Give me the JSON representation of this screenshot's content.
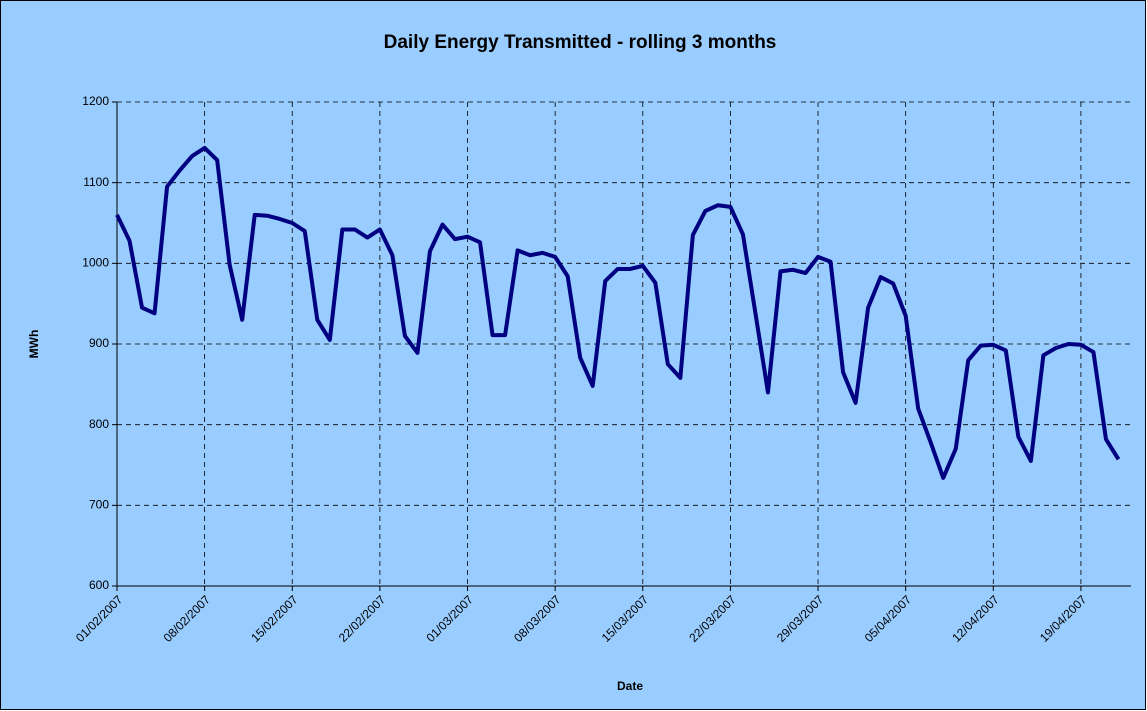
{
  "chart_data": {
    "type": "line",
    "title": "Daily Energy Transmitted - rolling 3 months",
    "x_label": "Date",
    "y_label": "MWh",
    "x": [
      "01/02/2007",
      "02/02/2007",
      "03/02/2007",
      "04/02/2007",
      "05/02/2007",
      "06/02/2007",
      "07/02/2007",
      "08/02/2007",
      "09/02/2007",
      "10/02/2007",
      "11/02/2007",
      "12/02/2007",
      "13/02/2007",
      "14/02/2007",
      "15/02/2007",
      "16/02/2007",
      "17/02/2007",
      "18/02/2007",
      "19/02/2007",
      "20/02/2007",
      "21/02/2007",
      "22/02/2007",
      "23/02/2007",
      "24/02/2007",
      "25/02/2007",
      "26/02/2007",
      "27/02/2007",
      "28/02/2007",
      "01/03/2007",
      "02/03/2007",
      "03/03/2007",
      "04/03/2007",
      "05/03/2007",
      "06/03/2007",
      "07/03/2007",
      "08/03/2007",
      "09/03/2007",
      "10/03/2007",
      "11/03/2007",
      "12/03/2007",
      "13/03/2007",
      "14/03/2007",
      "15/03/2007",
      "16/03/2007",
      "17/03/2007",
      "18/03/2007",
      "19/03/2007",
      "20/03/2007",
      "21/03/2007",
      "22/03/2007",
      "23/03/2007",
      "24/03/2007",
      "25/03/2007",
      "26/03/2007",
      "27/03/2007",
      "28/03/2007",
      "29/03/2007",
      "30/03/2007",
      "31/03/2007",
      "01/04/2007",
      "02/04/2007",
      "03/04/2007",
      "04/04/2007",
      "05/04/2007",
      "06/04/2007",
      "07/04/2007",
      "08/04/2007",
      "09/04/2007",
      "10/04/2007",
      "11/04/2007",
      "12/04/2007",
      "13/04/2007",
      "14/04/2007",
      "15/04/2007",
      "16/04/2007",
      "17/04/2007",
      "18/04/2007",
      "19/04/2007",
      "20/04/2007",
      "21/04/2007",
      "22/04/2007"
    ],
    "series": [
      {
        "name": "MWh",
        "color": "#000080",
        "values": [
          1060,
          1028,
          945,
          938,
          1095,
          1115,
          1133,
          1143,
          1128,
          998,
          930,
          1060,
          1059,
          1055,
          1050,
          1040,
          930,
          905,
          1042,
          1042,
          1032,
          1042,
          1010,
          910,
          889,
          1015,
          1048,
          1030,
          1033,
          1026,
          911,
          911,
          1016,
          1010,
          1013,
          1008,
          984,
          883,
          848,
          978,
          993,
          993,
          997,
          976,
          875,
          858,
          1035,
          1065,
          1072,
          1070,
          1036,
          938,
          840,
          990,
          992,
          988,
          1008,
          1002,
          865,
          827,
          945,
          983,
          975,
          935,
          820,
          778,
          734,
          770,
          880,
          898,
          899,
          892,
          785,
          755,
          886,
          895,
          900,
          899,
          890,
          782,
          757
        ]
      }
    ],
    "xlim": [
      "01/02/2007",
      "23/04/2007"
    ],
    "xticks": [
      "01/02/2007",
      "08/02/2007",
      "15/02/2007",
      "22/02/2007",
      "01/03/2007",
      "08/03/2007",
      "15/03/2007",
      "22/03/2007",
      "29/03/2007",
      "05/04/2007",
      "12/04/2007",
      "19/04/2007"
    ],
    "ylim": [
      600,
      1200
    ],
    "yticks": [
      600,
      700,
      800,
      900,
      1000,
      1100,
      1200
    ],
    "grid": true
  }
}
